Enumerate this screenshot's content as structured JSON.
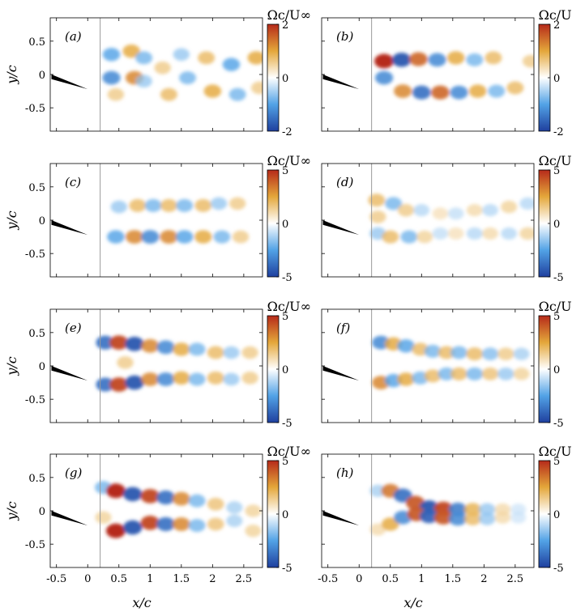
{
  "figure": {
    "colorbar_title": "Ωc/U∞",
    "xlabel": "x/c",
    "ylabel": "y/c",
    "colors": {
      "negative": "#1f4fb0",
      "positive": "#b62a1a",
      "neutral": "#ffffff",
      "mid_positive": "#e4a73a"
    }
  },
  "chart_data": [
    {
      "type": "heatmap",
      "label": "(a)",
      "xlim": [
        -0.6,
        2.8
      ],
      "ylim": [
        -0.85,
        0.85
      ],
      "xticks": [
        "-0.5",
        "0",
        "0.5",
        "1",
        "1.5",
        "2",
        "2.5"
      ],
      "yticks": [
        "0.5",
        "0",
        "-0.5"
      ],
      "cbar_ticks": [
        "2",
        "0",
        "-2"
      ],
      "clim": [
        -2,
        2
      ],
      "blobs": [
        [
          0.38,
          0.3,
          -0.6
        ],
        [
          0.38,
          -0.05,
          -0.7
        ],
        [
          0.45,
          -0.3,
          0.4
        ],
        [
          0.7,
          0.35,
          0.6
        ],
        [
          0.75,
          -0.05,
          0.7
        ],
        [
          0.9,
          0.25,
          -0.5
        ],
        [
          0.9,
          -0.1,
          -0.4
        ],
        [
          1.2,
          0.1,
          0.4
        ],
        [
          1.3,
          -0.3,
          0.5
        ],
        [
          1.5,
          0.3,
          -0.4
        ],
        [
          1.6,
          -0.05,
          -0.5
        ],
        [
          1.9,
          0.25,
          0.5
        ],
        [
          2.0,
          -0.25,
          0.6
        ],
        [
          2.3,
          0.15,
          -0.6
        ],
        [
          2.4,
          -0.3,
          -0.5
        ],
        [
          2.7,
          0.25,
          0.6
        ],
        [
          2.75,
          -0.2,
          0.4
        ]
      ]
    },
    {
      "type": "heatmap",
      "label": "(b)",
      "xlim": [
        -0.6,
        2.8
      ],
      "ylim": [
        -0.85,
        0.85
      ],
      "xticks": [
        "-0.5",
        "0",
        "0.5",
        "1",
        "1.5",
        "2",
        "2.5"
      ],
      "yticks": [
        "0.5",
        "0",
        "-0.5"
      ],
      "cbar_ticks": [
        "2",
        "0",
        "-2"
      ],
      "clim": [
        -2,
        2
      ],
      "blobs": [
        [
          0.4,
          0.2,
          1.0
        ],
        [
          0.68,
          0.22,
          -0.9
        ],
        [
          0.95,
          0.23,
          0.8
        ],
        [
          1.25,
          0.22,
          -0.7
        ],
        [
          1.55,
          0.25,
          0.6
        ],
        [
          1.85,
          0.22,
          -0.5
        ],
        [
          2.15,
          0.25,
          0.5
        ],
        [
          0.4,
          -0.05,
          -0.7
        ],
        [
          0.7,
          -0.25,
          0.7
        ],
        [
          1.0,
          -0.27,
          -0.8
        ],
        [
          1.3,
          -0.27,
          0.8
        ],
        [
          1.6,
          -0.27,
          -0.7
        ],
        [
          1.9,
          -0.25,
          0.6
        ],
        [
          2.2,
          -0.25,
          -0.5
        ],
        [
          2.5,
          -0.2,
          0.5
        ],
        [
          2.75,
          0.2,
          0.4
        ]
      ]
    },
    {
      "type": "heatmap",
      "label": "(c)",
      "xlim": [
        -0.6,
        2.8
      ],
      "ylim": [
        -0.85,
        0.85
      ],
      "xticks": [
        "-0.5",
        "0",
        "0.5",
        "1",
        "1.5",
        "2",
        "2.5"
      ],
      "yticks": [
        "0.5",
        "0",
        "-0.5"
      ],
      "cbar_ticks": [
        "5",
        "0",
        "-5"
      ],
      "clim": [
        -5,
        5
      ],
      "blobs": [
        [
          0.5,
          0.2,
          -0.4
        ],
        [
          0.8,
          0.22,
          0.5
        ],
        [
          1.05,
          0.22,
          -0.5
        ],
        [
          1.3,
          0.22,
          0.5
        ],
        [
          1.55,
          0.22,
          -0.5
        ],
        [
          1.85,
          0.22,
          0.5
        ],
        [
          2.1,
          0.25,
          -0.4
        ],
        [
          2.4,
          0.25,
          0.4
        ],
        [
          0.45,
          -0.25,
          -0.6
        ],
        [
          0.75,
          -0.25,
          0.7
        ],
        [
          1.0,
          -0.25,
          -0.7
        ],
        [
          1.3,
          -0.25,
          0.7
        ],
        [
          1.55,
          -0.25,
          -0.6
        ],
        [
          1.85,
          -0.25,
          0.6
        ],
        [
          2.15,
          -0.25,
          -0.5
        ],
        [
          2.45,
          -0.25,
          0.4
        ]
      ]
    },
    {
      "type": "heatmap",
      "label": "(d)",
      "xlim": [
        -0.6,
        2.8
      ],
      "ylim": [
        -0.85,
        0.85
      ],
      "xticks": [
        "-0.5",
        "0",
        "0.5",
        "1",
        "1.5",
        "2",
        "2.5"
      ],
      "yticks": [
        "0.5",
        "0",
        "-0.5"
      ],
      "cbar_ticks": [
        "5",
        "0",
        "-5"
      ],
      "clim": [
        -5,
        5
      ],
      "blobs": [
        [
          0.28,
          0.3,
          0.5
        ],
        [
          0.3,
          0.05,
          0.4
        ],
        [
          0.55,
          0.25,
          -0.5
        ],
        [
          0.75,
          0.15,
          0.4
        ],
        [
          1.0,
          0.15,
          -0.3
        ],
        [
          1.3,
          0.1,
          0.25
        ],
        [
          1.55,
          0.1,
          -0.25
        ],
        [
          1.85,
          0.15,
          0.3
        ],
        [
          2.1,
          0.15,
          -0.3
        ],
        [
          2.4,
          0.2,
          0.35
        ],
        [
          2.7,
          0.25,
          -0.3
        ],
        [
          0.3,
          -0.2,
          -0.4
        ],
        [
          0.5,
          -0.25,
          0.5
        ],
        [
          0.8,
          -0.25,
          -0.5
        ],
        [
          1.05,
          -0.25,
          0.35
        ],
        [
          1.3,
          -0.2,
          -0.25
        ],
        [
          1.55,
          -0.2,
          0.25
        ],
        [
          1.85,
          -0.2,
          -0.3
        ],
        [
          2.1,
          -0.2,
          0.3
        ],
        [
          2.4,
          -0.2,
          -0.3
        ],
        [
          2.7,
          -0.2,
          0.35
        ]
      ]
    },
    {
      "type": "heatmap",
      "label": "(e)",
      "xlim": [
        -0.6,
        2.8
      ],
      "ylim": [
        -0.85,
        0.85
      ],
      "xticks": [
        "-0.5",
        "0",
        "0.5",
        "1",
        "1.5",
        "2",
        "2.5"
      ],
      "yticks": [
        "0.5",
        "0",
        "-0.5"
      ],
      "cbar_ticks": [
        "5",
        "0",
        "-5"
      ],
      "clim": [
        -5,
        5
      ],
      "blobs": [
        [
          0.28,
          0.35,
          -0.8
        ],
        [
          0.5,
          0.35,
          0.9
        ],
        [
          0.75,
          0.33,
          -0.9
        ],
        [
          1.0,
          0.3,
          0.7
        ],
        [
          1.25,
          0.28,
          -0.7
        ],
        [
          1.5,
          0.25,
          0.6
        ],
        [
          1.75,
          0.25,
          -0.5
        ],
        [
          2.05,
          0.2,
          0.5
        ],
        [
          2.3,
          0.2,
          -0.4
        ],
        [
          2.6,
          0.2,
          0.4
        ],
        [
          0.28,
          -0.28,
          -0.8
        ],
        [
          0.5,
          -0.28,
          0.9
        ],
        [
          0.75,
          -0.25,
          -0.9
        ],
        [
          1.0,
          -0.2,
          0.7
        ],
        [
          1.25,
          -0.2,
          -0.7
        ],
        [
          1.5,
          -0.18,
          0.6
        ],
        [
          1.75,
          -0.2,
          -0.5
        ],
        [
          2.05,
          -0.18,
          0.5
        ],
        [
          2.3,
          -0.2,
          -0.4
        ],
        [
          2.6,
          -0.18,
          0.4
        ],
        [
          0.6,
          0.05,
          0.4
        ]
      ]
    },
    {
      "type": "heatmap",
      "label": "(f)",
      "xlim": [
        -0.6,
        2.8
      ],
      "ylim": [
        -0.85,
        0.85
      ],
      "xticks": [
        "-0.5",
        "0",
        "0.5",
        "1",
        "1.5",
        "2",
        "2.5"
      ],
      "yticks": [
        "0.5",
        "0",
        "-0.5"
      ],
      "cbar_ticks": [
        "5",
        "0",
        "-5"
      ],
      "clim": [
        -5,
        5
      ],
      "blobs": [
        [
          0.35,
          0.35,
          -0.7
        ],
        [
          0.55,
          0.33,
          0.6
        ],
        [
          0.75,
          0.3,
          -0.6
        ],
        [
          0.98,
          0.25,
          0.5
        ],
        [
          1.18,
          0.22,
          -0.5
        ],
        [
          1.4,
          0.2,
          0.5
        ],
        [
          1.6,
          0.2,
          -0.5
        ],
        [
          1.85,
          0.18,
          0.5
        ],
        [
          2.1,
          0.18,
          -0.45
        ],
        [
          2.35,
          0.18,
          0.4
        ],
        [
          2.6,
          0.18,
          -0.35
        ],
        [
          0.35,
          -0.25,
          0.7
        ],
        [
          0.55,
          -0.22,
          -0.6
        ],
        [
          0.75,
          -0.2,
          0.6
        ],
        [
          0.98,
          -0.18,
          -0.5
        ],
        [
          1.18,
          -0.15,
          0.5
        ],
        [
          1.4,
          -0.12,
          -0.5
        ],
        [
          1.6,
          -0.12,
          0.5
        ],
        [
          1.85,
          -0.12,
          -0.5
        ],
        [
          2.1,
          -0.12,
          0.45
        ],
        [
          2.35,
          -0.12,
          -0.4
        ],
        [
          2.6,
          -0.12,
          0.35
        ]
      ]
    },
    {
      "type": "heatmap",
      "label": "(g)",
      "xlim": [
        -0.6,
        2.8
      ],
      "ylim": [
        -0.85,
        0.85
      ],
      "xticks": [
        "-0.5",
        "0",
        "0.5",
        "1",
        "1.5",
        "2",
        "2.5"
      ],
      "yticks": [
        "0.5",
        "0",
        "-0.5"
      ],
      "cbar_ticks": [
        "5",
        "0",
        "-5"
      ],
      "clim": [
        -5,
        5
      ],
      "blobs": [
        [
          0.25,
          0.35,
          -0.5
        ],
        [
          0.45,
          0.3,
          1.0
        ],
        [
          0.72,
          0.25,
          -0.9
        ],
        [
          1.0,
          0.22,
          0.9
        ],
        [
          1.25,
          0.2,
          -0.8
        ],
        [
          1.5,
          0.18,
          0.7
        ],
        [
          1.75,
          0.15,
          -0.5
        ],
        [
          2.05,
          0.1,
          0.45
        ],
        [
          2.35,
          0.05,
          -0.35
        ],
        [
          2.65,
          0.0,
          0.35
        ],
        [
          0.25,
          -0.1,
          0.35
        ],
        [
          0.45,
          -0.3,
          1.0
        ],
        [
          0.72,
          -0.25,
          -0.9
        ],
        [
          1.0,
          -0.18,
          0.9
        ],
        [
          1.25,
          -0.2,
          -0.8
        ],
        [
          1.5,
          -0.2,
          0.7
        ],
        [
          1.75,
          -0.22,
          -0.5
        ],
        [
          2.05,
          -0.2,
          0.45
        ],
        [
          2.35,
          -0.15,
          -0.35
        ],
        [
          2.65,
          -0.3,
          0.35
        ]
      ]
    },
    {
      "type": "heatmap",
      "label": "(h)",
      "xlim": [
        -0.6,
        2.8
      ],
      "ylim": [
        -0.85,
        0.85
      ],
      "xticks": [
        "-0.5",
        "0",
        "0.5",
        "1",
        "1.5",
        "2",
        "2.5"
      ],
      "yticks": [
        "0.5",
        "0",
        "-0.5"
      ],
      "cbar_ticks": [
        "5",
        "0",
        "-5"
      ],
      "clim": [
        -5,
        5
      ],
      "blobs": [
        [
          0.3,
          0.3,
          -0.35
        ],
        [
          0.5,
          0.3,
          0.75
        ],
        [
          0.7,
          0.23,
          -0.8
        ],
        [
          0.9,
          0.12,
          0.85
        ],
        [
          1.12,
          0.05,
          -0.9
        ],
        [
          1.35,
          0.03,
          0.9
        ],
        [
          1.58,
          0.02,
          -0.75
        ],
        [
          1.82,
          0.02,
          0.55
        ],
        [
          2.05,
          0.02,
          -0.4
        ],
        [
          2.3,
          0.02,
          0.3
        ],
        [
          2.55,
          0.02,
          -0.2
        ],
        [
          0.3,
          -0.28,
          0.3
        ],
        [
          0.5,
          -0.2,
          0.6
        ],
        [
          0.7,
          -0.1,
          -0.7
        ],
        [
          0.92,
          -0.05,
          0.85
        ],
        [
          1.12,
          -0.08,
          -0.85
        ],
        [
          1.35,
          -0.1,
          0.85
        ],
        [
          1.58,
          -0.12,
          -0.7
        ],
        [
          1.82,
          -0.12,
          0.5
        ],
        [
          2.05,
          -0.12,
          -0.4
        ],
        [
          2.3,
          -0.1,
          0.3
        ],
        [
          2.55,
          -0.1,
          -0.2
        ]
      ]
    }
  ]
}
